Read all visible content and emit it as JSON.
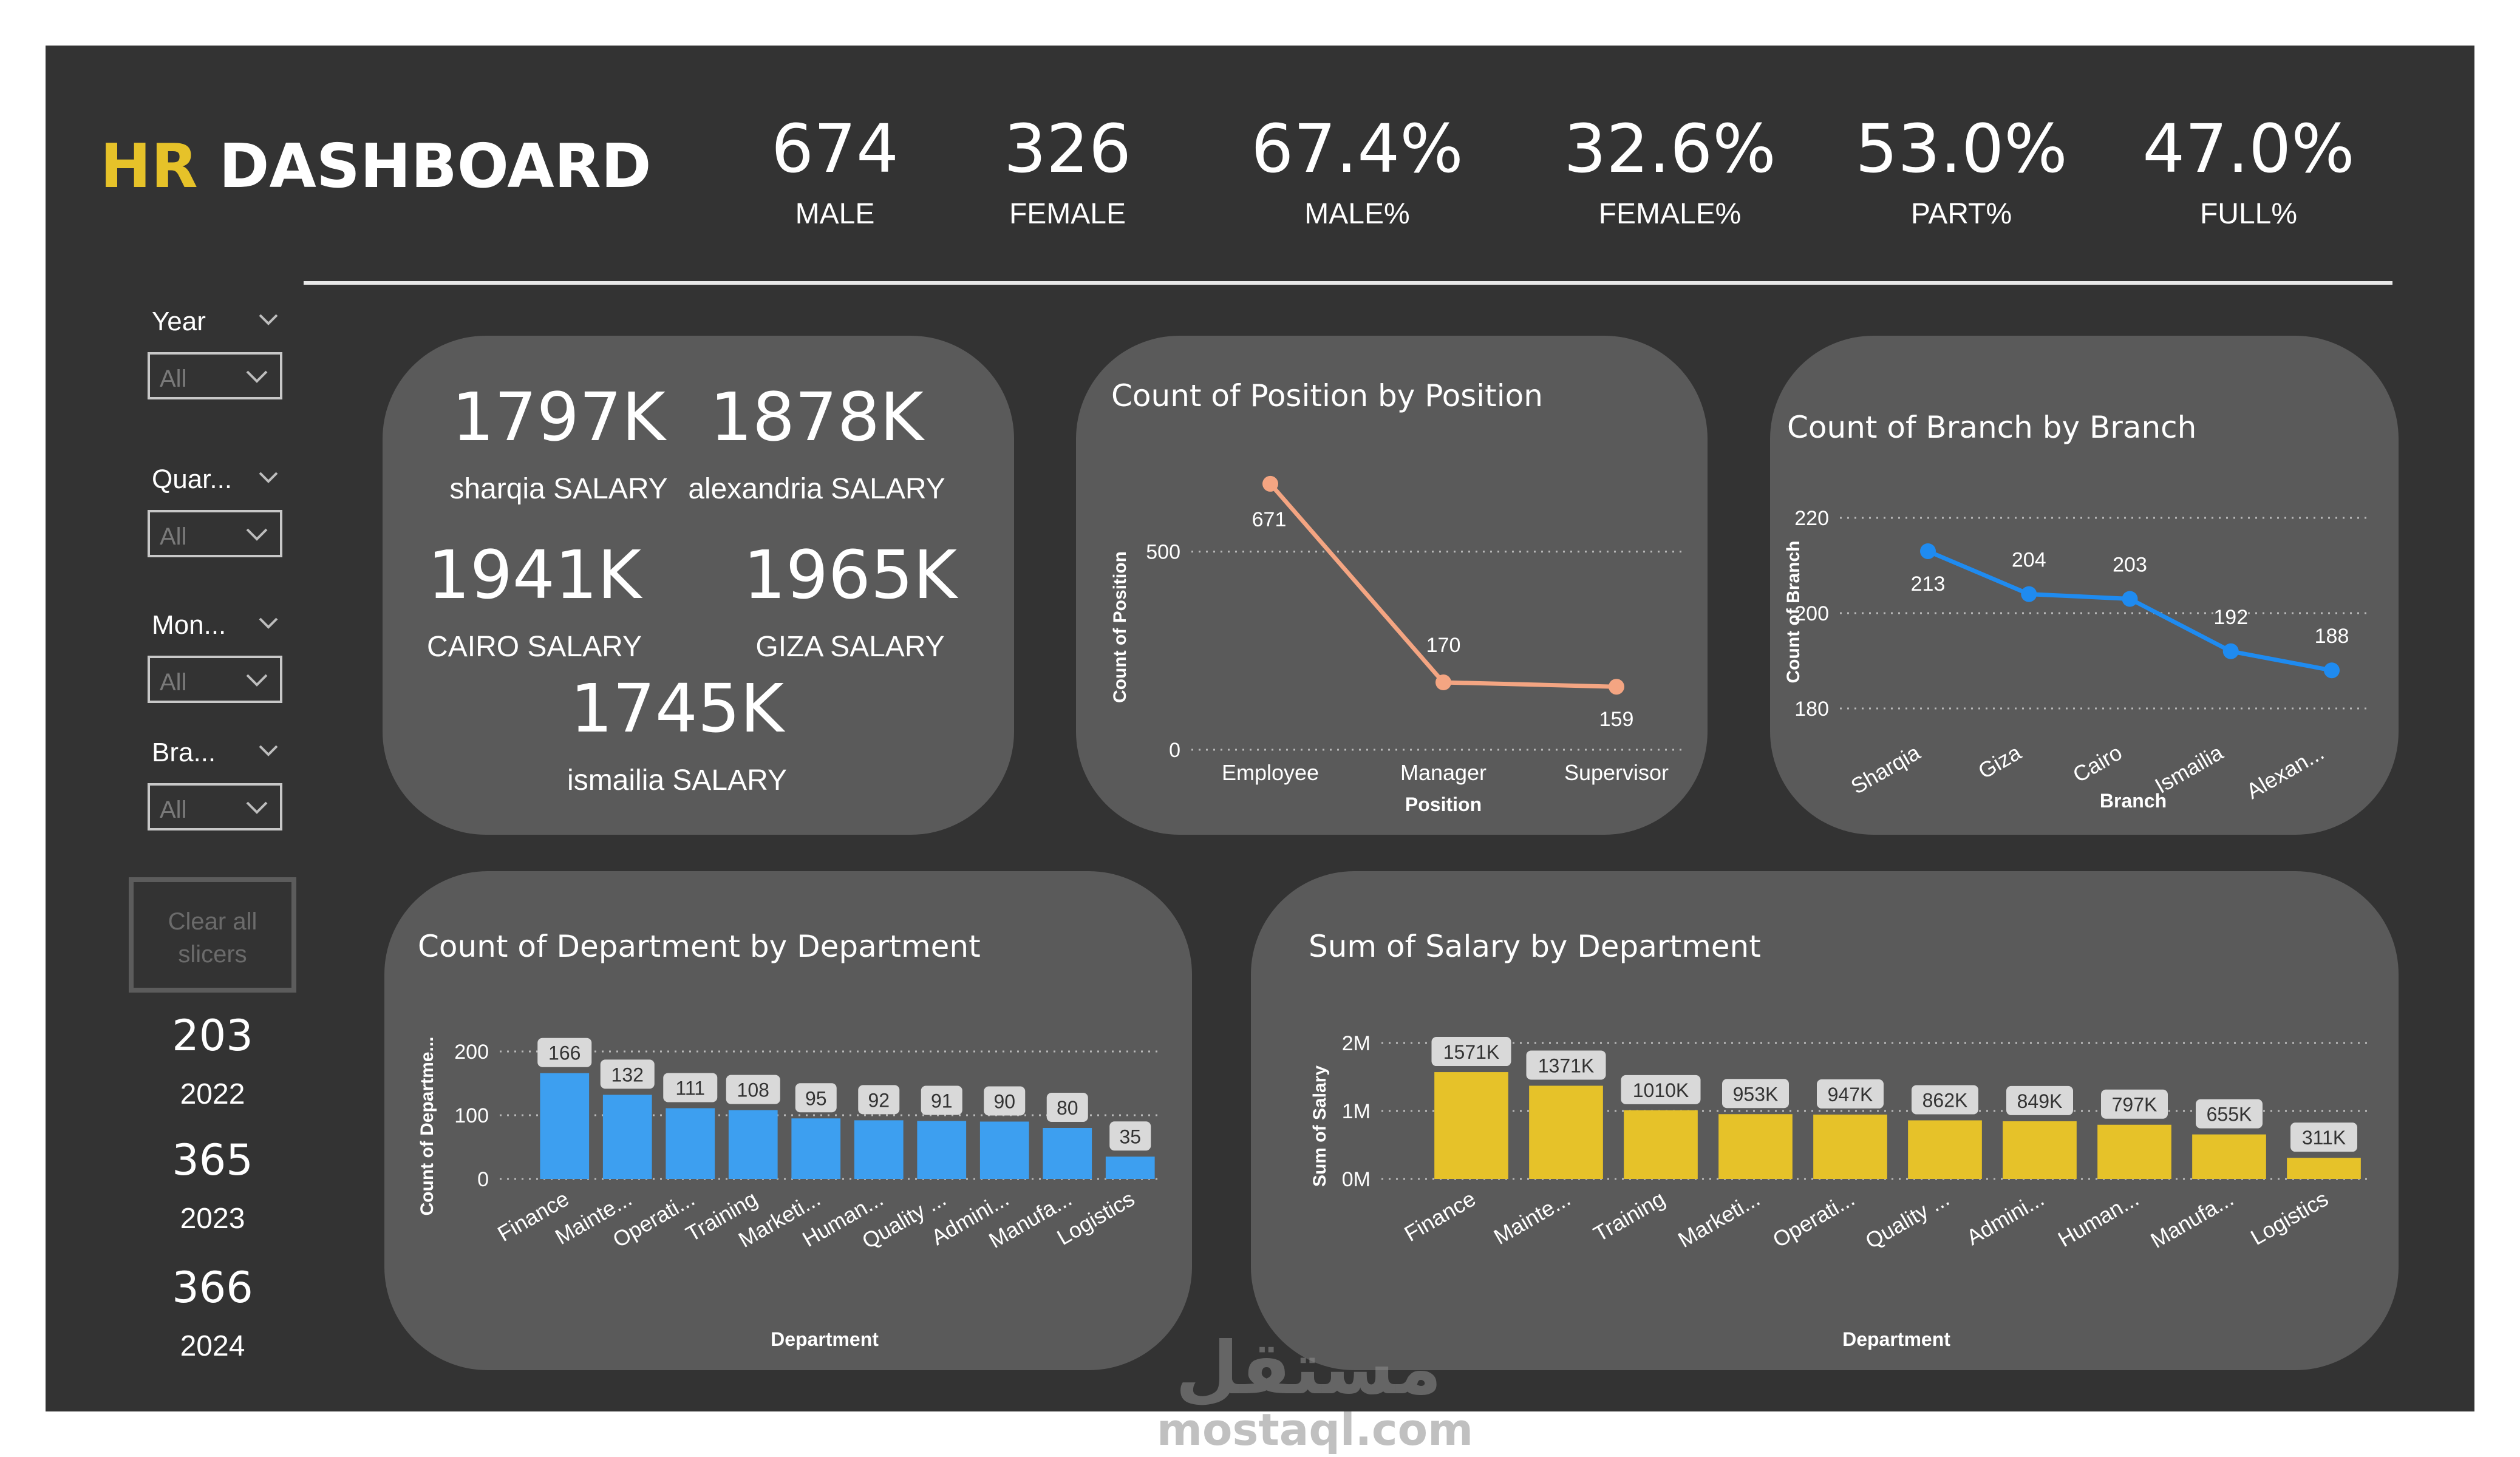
{
  "title": {
    "prefix": "HR",
    "rest": "DASHBOARD",
    "prefix_color": "#e6c229"
  },
  "kpis": [
    {
      "value": "674",
      "label": "MALE"
    },
    {
      "value": "326",
      "label": "FEMALE"
    },
    {
      "value": "67.4%",
      "label": "MALE%"
    },
    {
      "value": "32.6%",
      "label": "FEMALE%"
    },
    {
      "value": "53.0%",
      "label": "PART%"
    },
    {
      "value": "47.0%",
      "label": "FULL%"
    }
  ],
  "slicers": [
    {
      "label": "Year",
      "value": "All"
    },
    {
      "label": "Quar...",
      "value": "All"
    },
    {
      "label": "Mon...",
      "value": "All"
    },
    {
      "label": "Bra...",
      "value": "All"
    }
  ],
  "clear_button": {
    "line1": "Clear all",
    "line2": "slicers"
  },
  "year_counts": [
    {
      "count": "203",
      "year": "2022"
    },
    {
      "count": "365",
      "year": "2023"
    },
    {
      "count": "366",
      "year": "2024"
    }
  ],
  "salaries": [
    {
      "value": "1797K",
      "label": "sharqia SALARY"
    },
    {
      "value": "1878K",
      "label": "alexandria SALARY"
    },
    {
      "value": "1941K",
      "label": "CAIRO SALARY"
    },
    {
      "value": "1965K",
      "label": "GIZA SALARY"
    },
    {
      "value": "1745K",
      "label": "ismailia SALARY"
    }
  ],
  "chart_data": [
    {
      "type": "line",
      "title": "Count of Position by Position",
      "xlabel": "Position",
      "ylabel": "Count of Position",
      "categories": [
        "Employee",
        "Manager",
        "Supervisor"
      ],
      "values": [
        671,
        170,
        159
      ],
      "yticks": [
        "0",
        "500"
      ],
      "ylim": [
        0,
        700
      ],
      "color": "#f4a582",
      "grid": true
    },
    {
      "type": "line",
      "title": "Count of Branch by Branch",
      "xlabel": "Branch",
      "ylabel": "Count of Branch",
      "categories": [
        "Sharqia",
        "Giza",
        "Cairo",
        "Ismailia",
        "Alexan..."
      ],
      "values": [
        213,
        204,
        203,
        192,
        188
      ],
      "yticks": [
        "180",
        "200",
        "220"
      ],
      "ylim": [
        180,
        220
      ],
      "color": "#1f8bf0",
      "grid": true
    },
    {
      "type": "bar",
      "title": "Count of Department by Department",
      "xlabel": "Department",
      "ylabel": "Count of Departme...",
      "categories": [
        "Finance",
        "Mainte...",
        "Operati...",
        "Training",
        "Marketi...",
        "Human...",
        "Quality ...",
        "Admini...",
        "Manufa...",
        "Logistics"
      ],
      "values": [
        166,
        132,
        111,
        108,
        95,
        92,
        91,
        90,
        80,
        35
      ],
      "labels": [
        "166",
        "132",
        "111",
        "108",
        "95",
        "92",
        "91",
        "90",
        "80",
        "35"
      ],
      "yticks": [
        "0",
        "100",
        "200"
      ],
      "ylim": [
        0,
        200
      ],
      "color": "#3d9ff0",
      "grid": true
    },
    {
      "type": "bar",
      "title": "Sum of Salary by Department",
      "xlabel": "Department",
      "ylabel": "Sum of Salary",
      "categories": [
        "Finance",
        "Mainte...",
        "Training",
        "Marketi...",
        "Operati...",
        "Quality ...",
        "Admini...",
        "Human...",
        "Manufa...",
        "Logistics"
      ],
      "values": [
        1571000,
        1371000,
        1010000,
        953000,
        947000,
        862000,
        849000,
        797000,
        655000,
        311000
      ],
      "labels": [
        "1571K",
        "1371K",
        "1010K",
        "953K",
        "947K",
        "862K",
        "849K",
        "797K",
        "655K",
        "311K"
      ],
      "yticks": [
        "0M",
        "1M",
        "2M"
      ],
      "ylim": [
        0,
        2000000
      ],
      "color": "#e6c229",
      "grid": true
    }
  ],
  "watermark": {
    "arabic": "مستقل",
    "latin": "mostaql.com"
  }
}
